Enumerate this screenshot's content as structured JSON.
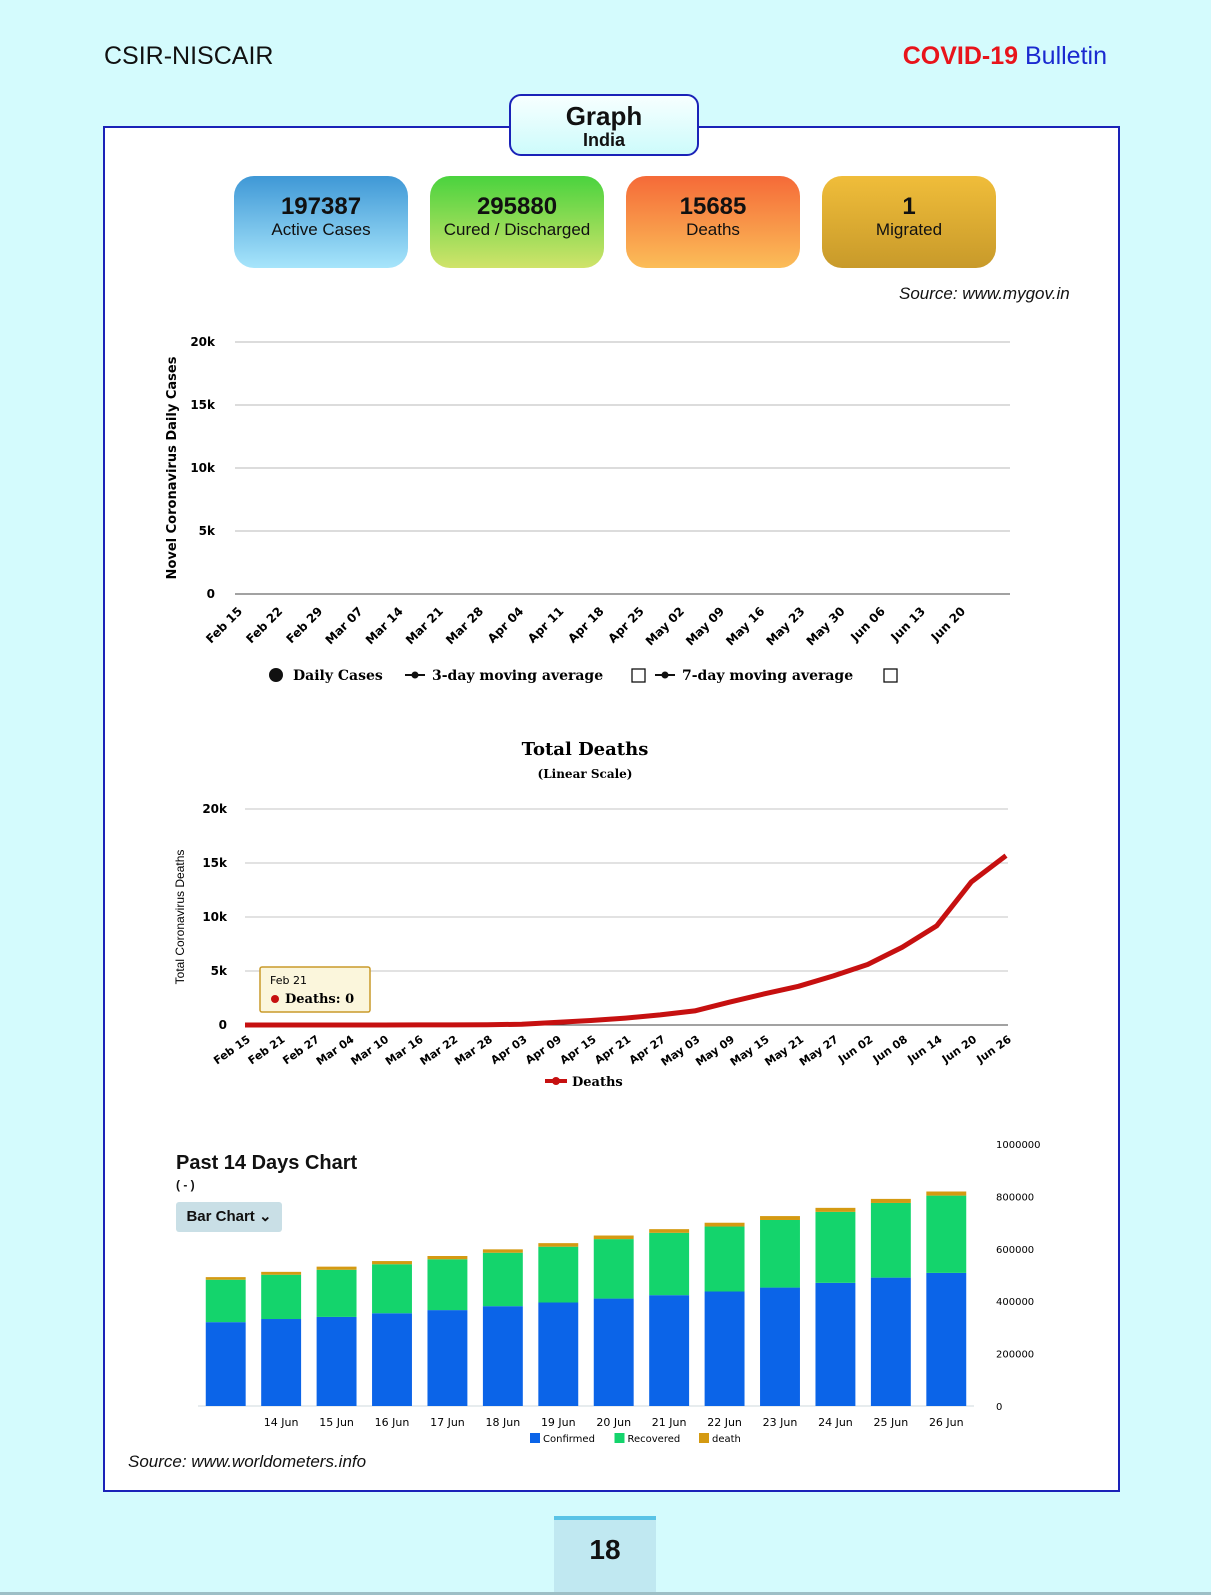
{
  "header": {
    "org": "CSIR-NISCAIR",
    "bulletin_red": "COVID-19",
    "bulletin_blue": "Bulletin"
  },
  "section": {
    "title": "Graph",
    "subtitle": "India"
  },
  "stats": [
    {
      "value": "197387",
      "label": "Active Cases"
    },
    {
      "value": "295880",
      "label": "Cured / Discharged"
    },
    {
      "value": "15685",
      "label": "Deaths"
    },
    {
      "value": "1",
      "label": "Migrated"
    }
  ],
  "source_top": "Source: www.mygov.in",
  "source_bottom": "Source: www.worldometers.info",
  "page_number": "18",
  "colors": {
    "confirmed": "#0b64e8",
    "recovered": "#14d46c",
    "death": "#d49a12",
    "deaths_line": "#c61010",
    "header_red": "#e8141b",
    "header_blue": "#1a2ad0"
  },
  "chart_data": [
    {
      "type": "bar",
      "ylabel": "Novel Coronavirus Daily Cases",
      "y_ticks": [
        "0",
        "5k",
        "10k",
        "15k",
        "20k"
      ],
      "ylim": [
        0,
        20000
      ],
      "x_tick_labels": [
        "Feb 15",
        "Feb 22",
        "Feb 29",
        "Mar 07",
        "Mar 14",
        "Mar 21",
        "Mar 28",
        "Apr 04",
        "Apr 11",
        "Apr 18",
        "Apr 25",
        "May 02",
        "May 09",
        "May 16",
        "May 23",
        "May 30",
        "Jun 06",
        "Jun 13",
        "Jun 20"
      ],
      "legend": [
        "Daily Cases",
        "3-day moving average",
        "7-day moving average"
      ],
      "x_start": "Feb 15",
      "values": [
        0,
        0,
        0,
        0,
        0,
        0,
        0,
        0,
        0,
        0,
        0,
        0,
        0,
        0,
        0,
        0,
        0,
        0,
        0,
        0,
        0,
        0,
        0,
        0,
        0,
        0,
        0,
        0,
        0,
        0,
        0,
        0,
        0,
        0,
        0,
        0,
        0,
        0,
        0,
        0,
        0,
        0,
        0,
        0,
        0,
        0,
        0,
        0,
        0,
        0,
        0,
        0,
        0,
        0,
        0,
        0,
        0,
        0,
        0,
        0,
        0,
        0,
        0,
        0,
        0,
        0,
        0,
        0,
        0,
        0,
        0,
        0,
        0,
        0,
        0,
        0,
        0,
        0,
        0,
        0,
        0,
        0,
        0,
        0,
        0,
        0,
        0,
        0,
        0,
        0,
        0,
        0,
        0,
        0,
        0,
        0,
        0,
        0,
        0,
        0,
        0,
        0,
        0,
        0,
        0,
        0,
        0,
        0,
        0,
        0,
        0,
        0,
        0,
        0,
        0,
        0,
        0,
        0,
        0,
        0,
        0,
        0,
        0,
        0,
        0,
        0,
        0,
        0,
        0,
        0,
        0,
        0,
        0,
        0
      ]
    },
    {
      "type": "line",
      "title": "Total Deaths",
      "subtitle": "(Linear Scale)",
      "ylabel": "Total Coronavirus Deaths",
      "y_ticks": [
        "0",
        "5k",
        "10k",
        "15k",
        "20k"
      ],
      "ylim": [
        0,
        20000
      ],
      "x_tick_labels": [
        "Feb 15",
        "Feb 21",
        "Feb 27",
        "Mar 04",
        "Mar 10",
        "Mar 16",
        "Mar 22",
        "Mar 28",
        "Apr 03",
        "Apr 09",
        "Apr 15",
        "Apr 21",
        "Apr 27",
        "May 03",
        "May 09",
        "May 15",
        "May 21",
        "May 27",
        "Jun 02",
        "Jun 08",
        "Jun 14",
        "Jun 20",
        "Jun 26"
      ],
      "series": [
        {
          "name": "Deaths",
          "values": [
            0,
            0,
            0,
            0,
            0,
            10,
            7,
            24,
            69,
            242,
            414,
            640,
            934,
            1306,
            2109,
            2872,
            3584,
            4534,
            5598,
            7200,
            9195,
            13254,
            15685
          ]
        }
      ],
      "tooltip": {
        "date": "Feb 21",
        "label": "Deaths: 0"
      },
      "legend": [
        "Deaths"
      ]
    },
    {
      "type": "bar",
      "title": "Past 14 Days Chart",
      "subtitle": "( - )",
      "control_label": "Bar Chart",
      "categories": [
        "",
        "14 Jun",
        "15 Jun",
        "16 Jun",
        "17 Jun",
        "18 Jun",
        "19 Jun",
        "20 Jun",
        "21 Jun",
        "22 Jun",
        "23 Jun",
        "24 Jun",
        "25 Jun",
        "26 Jun"
      ],
      "y_ticks": [
        "0",
        "200000",
        "400000",
        "600000",
        "800000",
        "1000000"
      ],
      "ylim": [
        0,
        1000000
      ],
      "stacked": true,
      "series": [
        {
          "name": "Confirmed",
          "values": [
            320000,
            332000,
            340000,
            354000,
            366000,
            381000,
            395000,
            410000,
            423000,
            437000,
            452000,
            470000,
            490000,
            508000
          ]
        },
        {
          "name": "Recovered",
          "values": [
            162000,
            169000,
            180000,
            187000,
            194000,
            204000,
            213000,
            227000,
            238000,
            248000,
            258000,
            271000,
            285000,
            295000
          ]
        },
        {
          "name": "death",
          "values": [
            9900,
            11000,
            11900,
            12200,
            12500,
            12900,
            13600,
            13700,
            14000,
            14500,
            14900,
            15300,
            15500,
            15700
          ]
        }
      ],
      "legend": [
        "Confirmed",
        "Recovered",
        "death"
      ]
    }
  ]
}
